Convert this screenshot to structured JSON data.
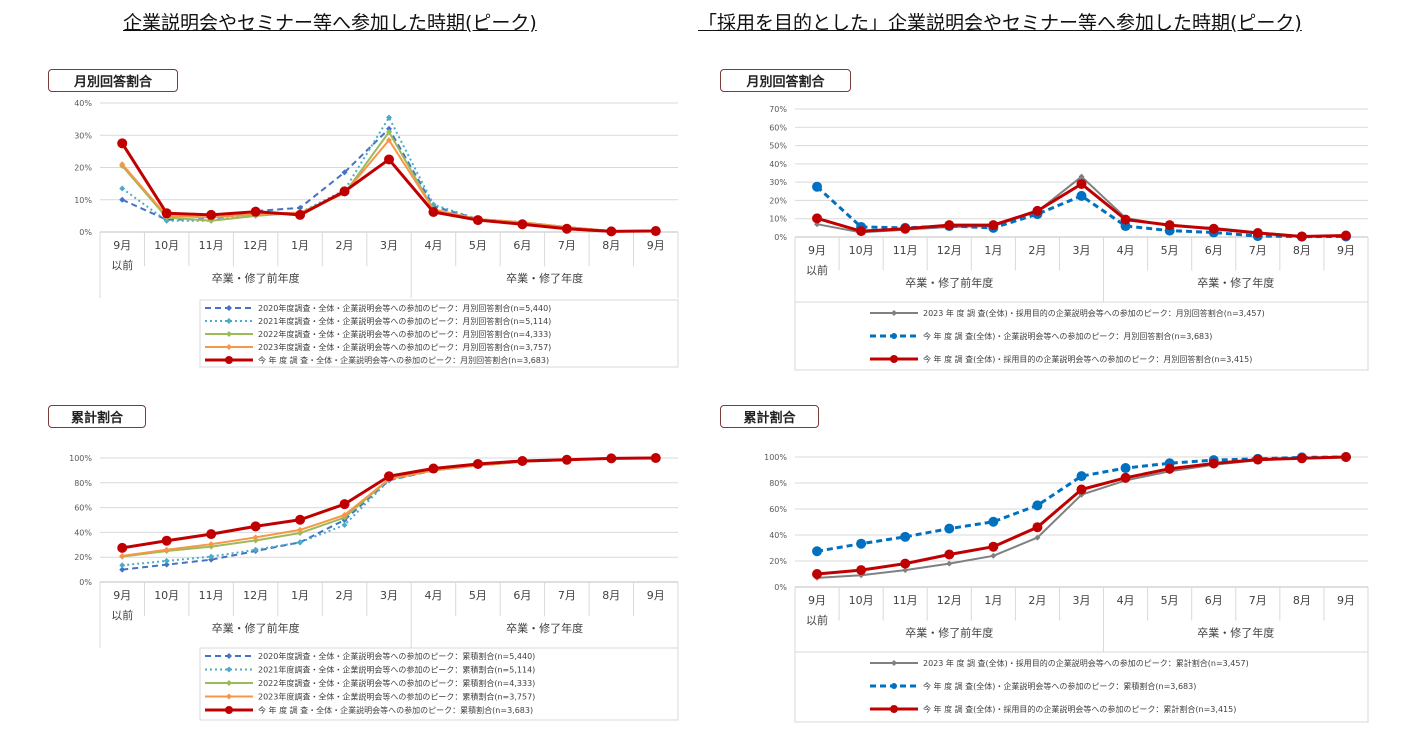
{
  "titles": {
    "left": "企業説明会やセミナー等へ参加した時期(ピーク)",
    "right": "「採用を目的とした」企業説明会やセミナー等へ参加した時期(ピーク)"
  },
  "section_labels": {
    "monthly": "月別回答割合",
    "cumulative": "累計割合"
  },
  "chart_data": [
    {
      "type": "line",
      "section": "月別回答割合",
      "categories": [
        "9月\n以前",
        "10月",
        "11月",
        "12月",
        "1月",
        "2月",
        "3月",
        "4月",
        "5月",
        "6月",
        "7月",
        "8月",
        "9月"
      ],
      "groups": [
        {
          "label": "卒業・修了前年度",
          "span": 7
        },
        {
          "label": "卒業・修了年度",
          "span": 6
        }
      ],
      "ylim": [
        0,
        40
      ],
      "yticks": [
        0,
        10,
        20,
        30,
        40
      ],
      "ytick_suffix": "%",
      "grid": true,
      "legend": "bottom",
      "series": [
        {
          "name": "2020年度調査・全体・企業説明会等への参加のピーク：月別回答割合(n=5,440)",
          "color": "#4472C4",
          "style": "dashed",
          "marker": "diamond",
          "values": [
            10,
            3.8,
            4,
            6.5,
            7.5,
            18.5,
            32,
            8,
            4,
            3,
            1.5,
            0.3,
            0.3
          ]
        },
        {
          "name": "2021年度調査・全体・企業説明会等への参加のピーク：月別回答割合(n=5,114)",
          "color": "#4BACC6",
          "style": "dotted",
          "marker": "diamond",
          "values": [
            13.5,
            3.5,
            3.5,
            5.5,
            6,
            13,
            35.5,
            8.5,
            4,
            3,
            1.5,
            0.3,
            0.3
          ]
        },
        {
          "name": "2022年度調査・全体・企業説明会等への参加のピーク：月別回答割合(n=4,333)",
          "color": "#9BBB59",
          "style": "solid",
          "marker": "diamond",
          "values": [
            20.5,
            4.5,
            3.5,
            5,
            6,
            12,
            31,
            7,
            4,
            3,
            1.5,
            0.3,
            0.3
          ]
        },
        {
          "name": "2023年度調査・全体・企業説明会等への参加のピーク：月別回答割合(n=3,757)",
          "color": "#F79646",
          "style": "solid",
          "marker": "diamond",
          "values": [
            21,
            5,
            4.5,
            5.5,
            6,
            12,
            28.5,
            7,
            4,
            3,
            1.5,
            0.3,
            0.3
          ]
        },
        {
          "name": "今 年 度 調 査・全体・企業説明会等への参加のピーク：月別回答割合(n=3,683)",
          "color": "#C00000",
          "style": "thick",
          "marker": "circle",
          "values": [
            27.5,
            5.8,
            5.3,
            6.3,
            5.3,
            12.6,
            22.5,
            6.2,
            3.7,
            2.4,
            1.0,
            0.2,
            0.3
          ]
        }
      ]
    },
    {
      "type": "line",
      "section": "月別回答割合",
      "categories": [
        "9月\n以前",
        "10月",
        "11月",
        "12月",
        "1月",
        "2月",
        "3月",
        "4月",
        "5月",
        "6月",
        "7月",
        "8月",
        "9月"
      ],
      "groups": [
        {
          "label": "卒業・修了前年度",
          "span": 7
        },
        {
          "label": "卒業・修了年度",
          "span": 6
        }
      ],
      "ylim": [
        0,
        70
      ],
      "yticks": [
        0,
        10,
        20,
        30,
        40,
        50,
        60,
        70
      ],
      "ytick_suffix": "%",
      "grid": true,
      "legend": "bottom",
      "series": [
        {
          "name": "2023 年 度 調 査(全体)・採用目的の企業説明会等への参加のピーク：月別回答割合(n=3,457)",
          "color": "#808080",
          "style": "solid",
          "marker": "diamond",
          "values": [
            7,
            2.5,
            4,
            5.5,
            6,
            14,
            33,
            10.5,
            6,
            5,
            2.5,
            0.3,
            0.8
          ]
        },
        {
          "name": "今 年 度 調 査(全体)・企業説明会等への参加のピーク：月別回答割合(n=3,683)",
          "color": "#0070C0",
          "style": "dashed",
          "marker": "circle",
          "values": [
            27.5,
            5.5,
            5,
            6,
            5,
            12.5,
            22.5,
            6,
            3.5,
            2.5,
            0.5,
            0.2,
            0.3
          ]
        },
        {
          "name": "今 年 度 調 査(全体)・採用目的の企業説明会等への参加のピーク：月別回答割合(n=3,415)",
          "color": "#C00000",
          "style": "thick",
          "marker": "circle",
          "values": [
            10.2,
            3.2,
            4.5,
            6.5,
            6.5,
            14.3,
            29,
            9.5,
            6.5,
            4.5,
            2.2,
            0.3,
            0.8
          ]
        }
      ]
    },
    {
      "type": "line",
      "section": "累計割合",
      "categories": [
        "9月\n以前",
        "10月",
        "11月",
        "12月",
        "1月",
        "2月",
        "3月",
        "4月",
        "5月",
        "6月",
        "7月",
        "8月",
        "9月"
      ],
      "groups": [
        {
          "label": "卒業・修了前年度",
          "span": 7
        },
        {
          "label": "卒業・修了年度",
          "span": 6
        }
      ],
      "ylim": [
        0,
        100
      ],
      "yticks": [
        0,
        20,
        40,
        60,
        80,
        100
      ],
      "ytick_suffix": "%",
      "grid": true,
      "legend": "bottom",
      "series": [
        {
          "name": "2020年度調査・全体・企業説明会等への参加のピーク：累積割合(n=5,440)",
          "color": "#4472C4",
          "style": "dashed",
          "marker": "diamond",
          "values": [
            10,
            14,
            18,
            25,
            32,
            50,
            82,
            90,
            94,
            97,
            98.5,
            99.7,
            100
          ]
        },
        {
          "name": "2021年度調査・全体・企業説明会等への参加のピーク：累積割合(n=5,114)",
          "color": "#4BACC6",
          "style": "dotted",
          "marker": "diamond",
          "values": [
            13.5,
            17,
            20.5,
            26,
            32,
            46,
            82,
            90,
            94,
            97,
            98.5,
            99.7,
            100
          ]
        },
        {
          "name": "2022年度調査・全体・企業説明会等への参加のピーク：累積割合(n=4,333)",
          "color": "#9BBB59",
          "style": "solid",
          "marker": "diamond",
          "values": [
            20.5,
            25,
            28.5,
            33.5,
            39.5,
            52,
            83,
            90,
            94,
            97,
            98.5,
            99.7,
            100
          ]
        },
        {
          "name": "2023年度調査・全体・企業説明会等への参加のピーク：累積割合(n=3,757)",
          "color": "#F79646",
          "style": "solid",
          "marker": "diamond",
          "values": [
            21,
            26,
            30.5,
            36,
            42,
            54,
            83,
            90,
            94,
            97,
            98.5,
            99.7,
            100
          ]
        },
        {
          "name": "今 年 度 調 査・全体・企業説明会等への参加のピーク：累積割合(n=3,683)",
          "color": "#C00000",
          "style": "thick",
          "marker": "circle",
          "values": [
            27.5,
            33.3,
            38.6,
            44.9,
            50.2,
            62.8,
            85.3,
            91.5,
            95.2,
            97.6,
            98.6,
            99.7,
            100
          ]
        }
      ]
    },
    {
      "type": "line",
      "section": "累計割合",
      "categories": [
        "9月\n以前",
        "10月",
        "11月",
        "12月",
        "1月",
        "2月",
        "3月",
        "4月",
        "5月",
        "6月",
        "7月",
        "8月",
        "9月"
      ],
      "groups": [
        {
          "label": "卒業・修了前年度",
          "span": 7
        },
        {
          "label": "卒業・修了年度",
          "span": 6
        }
      ],
      "ylim": [
        0,
        100
      ],
      "yticks": [
        0,
        20,
        40,
        60,
        80,
        100
      ],
      "ytick_suffix": "%",
      "grid": true,
      "legend": "bottom",
      "series": [
        {
          "name": "2023 年 度 調 査(全体)・採用目的の企業説明会等への参加のピーク：累計割合(n=3,457)",
          "color": "#808080",
          "style": "solid",
          "marker": "diamond",
          "values": [
            7,
            9,
            13,
            18,
            24,
            38,
            71,
            82,
            89,
            94,
            97.5,
            99,
            100
          ]
        },
        {
          "name": "今 年 度 調 査(全体)・企業説明会等への参加のピーク：累積割合(n=3,683)",
          "color": "#0070C0",
          "style": "dashed",
          "marker": "circle",
          "values": [
            27.5,
            33.3,
            38.6,
            44.9,
            50.2,
            62.8,
            85.3,
            91.5,
            95.2,
            97.6,
            98.6,
            99.7,
            100
          ]
        },
        {
          "name": "今 年 度 調 査(全体)・採用目的の企業説明会等への参加のピーク：累計割合(n=3,415)",
          "color": "#C00000",
          "style": "thick",
          "marker": "circle",
          "values": [
            10,
            13,
            18,
            25,
            31,
            46,
            75,
            84,
            91,
            95,
            98,
            99,
            100
          ]
        }
      ]
    }
  ]
}
